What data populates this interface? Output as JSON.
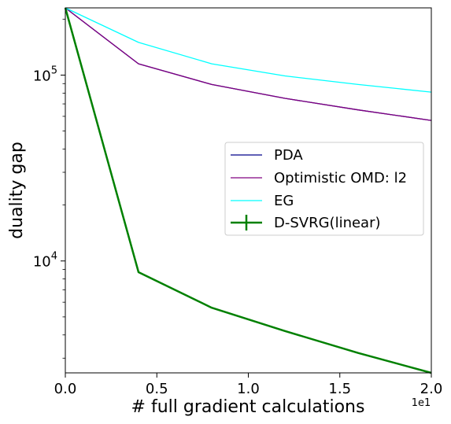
{
  "chart_data": {
    "type": "line",
    "xlabel": "# full gradient calculations",
    "ylabel": "duality gap",
    "x_offset_label": "1e1",
    "xlim": [
      0.0,
      2.0
    ],
    "ylim": [
      2500,
      230000
    ],
    "yscale": "log",
    "grid": false,
    "legend_position": "center-right",
    "x_ticks": [
      "0.0",
      "0.5",
      "1.0",
      "1.5",
      "2.0"
    ],
    "y_ticks": [
      {
        "value": 100000,
        "base": "10",
        "exp": "5"
      },
      {
        "value": 10000,
        "base": "10",
        "exp": "4"
      }
    ],
    "series": [
      {
        "name": "PDA",
        "color": "#00008b",
        "x": [
          0,
          0.4,
          0.8,
          1.2,
          1.6,
          2.0
        ],
        "y": [
          230000,
          115000,
          89000,
          75000,
          65000,
          57000
        ]
      },
      {
        "name": "Optimistic OMD: l2",
        "color": "#800080",
        "x": [
          0,
          0.4,
          0.8,
          1.2,
          1.6,
          2.0
        ],
        "y": [
          230000,
          115000,
          89000,
          75000,
          65000,
          57000
        ]
      },
      {
        "name": "EG",
        "color": "#00ffff",
        "x": [
          0,
          0.4,
          0.8,
          1.2,
          1.6,
          2.0
        ],
        "y": [
          230000,
          150000,
          115000,
          99000,
          89000,
          81000
        ]
      },
      {
        "name": "D-SVRG(linear)",
        "color": "#008000",
        "x": [
          0,
          0.4,
          0.8,
          1.2,
          1.6,
          2.0
        ],
        "y": [
          230000,
          8700,
          5600,
          4200,
          3200,
          2500
        ]
      }
    ]
  }
}
